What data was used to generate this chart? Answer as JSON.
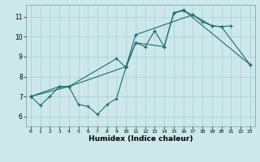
{
  "xlabel": "Humidex (Indice chaleur)",
  "xlim": [
    -0.5,
    23.5
  ],
  "ylim": [
    5.5,
    11.6
  ],
  "xticks": [
    0,
    1,
    2,
    3,
    4,
    5,
    6,
    7,
    8,
    9,
    10,
    11,
    12,
    13,
    14,
    15,
    16,
    17,
    18,
    19,
    20,
    21,
    22,
    23
  ],
  "yticks": [
    6,
    7,
    8,
    9,
    10,
    11
  ],
  "bg_color": "#cce8ea",
  "grid_color": "#aacdd0",
  "line_color": "#1c6b6b",
  "line1_x": [
    0,
    1,
    2,
    3,
    4,
    5,
    6,
    7,
    8,
    9,
    10,
    11,
    12,
    13,
    14,
    15,
    16,
    17,
    18,
    19,
    20,
    21
  ],
  "line1_y": [
    7.0,
    6.55,
    7.0,
    7.5,
    7.5,
    6.6,
    6.5,
    6.1,
    6.6,
    6.9,
    8.5,
    9.7,
    9.5,
    10.3,
    9.5,
    11.2,
    11.3,
    11.1,
    10.75,
    10.55,
    10.5,
    10.55
  ],
  "line2_x": [
    0,
    3,
    4,
    10,
    11,
    17,
    19,
    20,
    23
  ],
  "line2_y": [
    7.0,
    7.5,
    7.5,
    8.5,
    10.1,
    11.1,
    10.55,
    10.5,
    8.6
  ],
  "line3_x": [
    0,
    4,
    9,
    10,
    11,
    14,
    15,
    16,
    23
  ],
  "line3_y": [
    7.0,
    7.5,
    8.9,
    8.45,
    9.7,
    9.5,
    11.2,
    11.35,
    8.6
  ]
}
